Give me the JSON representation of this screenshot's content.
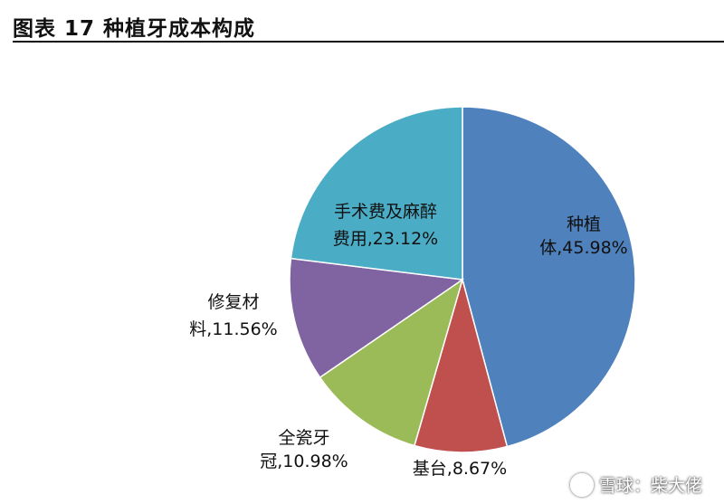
{
  "header": {
    "title": "图表 17 种植牙成本构成"
  },
  "chart_data": {
    "type": "pie",
    "start_angle_deg": 0,
    "direction": "clockwise",
    "slices": [
      {
        "label_lines": [
          "种植",
          "体,45.98%"
        ],
        "name": "种植体",
        "value": 45.98,
        "color": "#4f81bd"
      },
      {
        "label_lines": [
          "基台,8.67%"
        ],
        "name": "基台",
        "value": 8.67,
        "color": "#c0504d"
      },
      {
        "label_lines": [
          "全瓷牙",
          "冠,10.98%"
        ],
        "name": "全瓷牙冠",
        "value": 10.98,
        "color": "#9bbb59"
      },
      {
        "label_lines": [
          "修复材",
          "料,11.56%"
        ],
        "name": "修复材料",
        "value": 11.56,
        "color": "#8064a2"
      },
      {
        "label_lines": [
          "手术费及麻醉",
          "费用,23.12%"
        ],
        "name": "手术费及麻醉费用",
        "value": 23.12,
        "color": "#4bacc6"
      }
    ]
  },
  "watermark": {
    "text": "雪球：柴大佬"
  }
}
